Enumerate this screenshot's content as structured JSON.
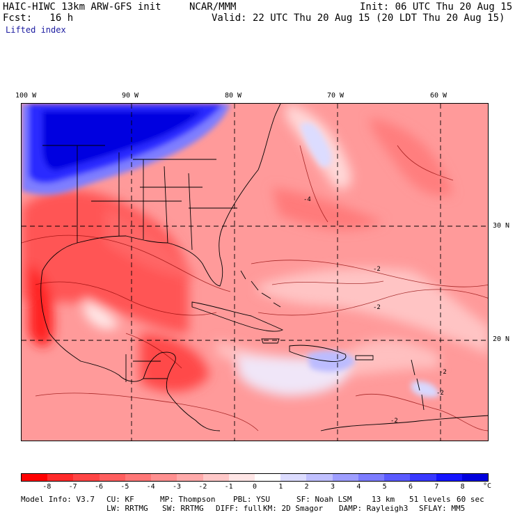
{
  "header": {
    "title": "HAIC-HIWC 13km ARW-GFS init",
    "org": "NCAR/MMM",
    "init": "Init: 06 UTC Thu 20 Aug 15",
    "fcst": "Fcst:   16 h",
    "valid": "Valid: 22 UTC Thu 20 Aug 15 (20 LDT Thu 20 Aug 15)",
    "field": "Lifted index"
  },
  "map": {
    "lon_labels": [
      "100 W",
      "90 W",
      "80 W",
      "70 W",
      "60 W"
    ],
    "lat_labels": [
      "30 N",
      "20 N"
    ],
    "contour_labels": [
      "-2",
      "-2",
      "-2",
      "-2",
      "-4",
      "-2"
    ]
  },
  "colorbar": {
    "unit": "°C",
    "tick_labels": [
      "-8",
      "-7",
      "-6",
      "-5",
      "-4",
      "-3",
      "-2",
      "-1",
      "0",
      "1",
      "2",
      "3",
      "4",
      "5",
      "6",
      "7",
      "8"
    ],
    "colors": [
      "#ff0000",
      "#ff2a2a",
      "#ff4545",
      "#ff5e5e",
      "#ff7777",
      "#ff9090",
      "#ffaaaa",
      "#ffc8c8",
      "#ffe6e6",
      "#ffffff",
      "#dcdcff",
      "#c0c0ff",
      "#9e9eff",
      "#7c7cff",
      "#5a5aff",
      "#3838ff",
      "#1414ff",
      "#0000dd"
    ]
  },
  "model_info": {
    "line1": [
      "Model Info: V3.7",
      "CU: KF",
      "MP: Thompson",
      "PBL: YSU",
      "SF: Noah LSM",
      "13 km",
      "51 levels",
      "60 sec"
    ],
    "line2": [
      "LW: RRTMG",
      "SW: RRTMG",
      "DIFF: full",
      "KM: 2D Smagor",
      "DAMP: Rayleigh3",
      "SFLAY: MM5"
    ]
  }
}
